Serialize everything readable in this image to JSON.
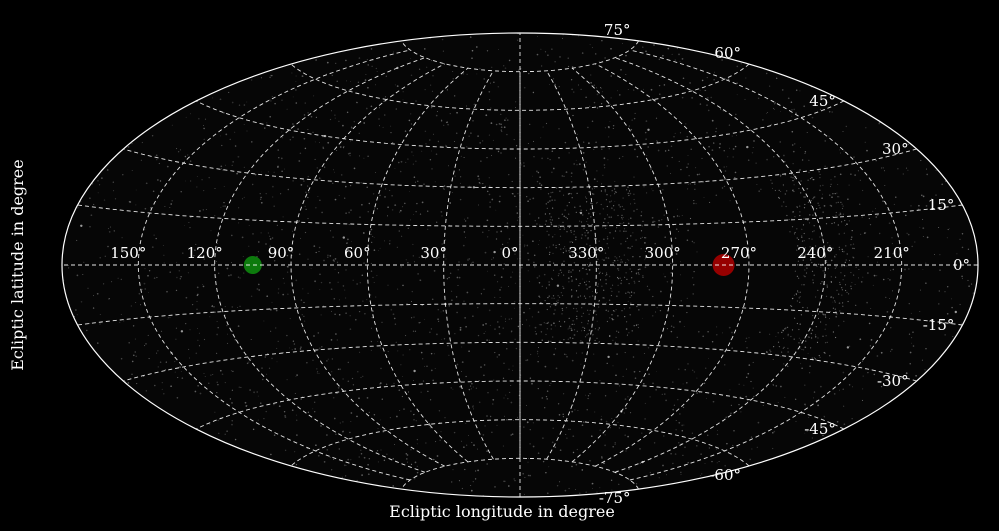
{
  "chart_data": {
    "type": "scatter",
    "projection": "aitoff",
    "title": "",
    "xlabel": "Ecliptic longitude in degree",
    "ylabel": "Ecliptic latitude in degree",
    "x_tick_labels": [
      "150°",
      "120°",
      "90°",
      "60°",
      "30°",
      "0°",
      "330°",
      "300°",
      "270°",
      "240°",
      "210°"
    ],
    "x_tick_values": [
      150,
      120,
      90,
      60,
      30,
      0,
      330,
      300,
      270,
      240,
      210
    ],
    "y_tick_labels": [
      "75°",
      "60°",
      "45°",
      "30°",
      "15°",
      "0°",
      "-15°",
      "-30°",
      "-45°",
      "-60°",
      "-75°"
    ],
    "y_tick_values": [
      75,
      60,
      45,
      30,
      15,
      0,
      -15,
      -30,
      -45,
      -60,
      -75
    ],
    "xlim": [
      0,
      360
    ],
    "ylim": [
      -90,
      90
    ],
    "grid": true,
    "background": "#000000",
    "grid_color": "#ffffff",
    "series": [
      {
        "marker": "background-points",
        "color": "#bfbfbf",
        "points": [
          {
            "lon": 10,
            "lat": 5
          },
          {
            "lon": 345,
            "lat": -8
          },
          {
            "lon": 20,
            "lat": 30
          },
          {
            "lon": 335,
            "lat": 20
          },
          {
            "lon": 50,
            "lat": -40
          },
          {
            "lon": 320,
            "lat": -35
          },
          {
            "lon": 100,
            "lat": 45
          },
          {
            "lon": 250,
            "lat": 40
          },
          {
            "lon": 140,
            "lat": -20
          },
          {
            "lon": 220,
            "lat": -25
          },
          {
            "lon": 175,
            "lat": 10
          },
          {
            "lon": 185,
            "lat": -12
          },
          {
            "lon": 70,
            "lat": 10
          },
          {
            "lon": 290,
            "lat": 50
          },
          {
            "lon": 60,
            "lat": -60
          },
          {
            "lon": 300,
            "lat": -55
          },
          {
            "lon": 120,
            "lat": 70
          },
          {
            "lon": 240,
            "lat": -70
          },
          {
            "lon": 30,
            "lat": -15
          },
          {
            "lon": 330,
            "lat": 10
          }
        ]
      },
      {
        "marker": "green-point",
        "color": "#0f8f0f",
        "points": [
          {
            "lon": 105,
            "lat": 0
          }
        ]
      },
      {
        "marker": "red-point",
        "color": "#b00000",
        "points": [
          {
            "lon": 280,
            "lat": 0
          }
        ]
      }
    ]
  }
}
